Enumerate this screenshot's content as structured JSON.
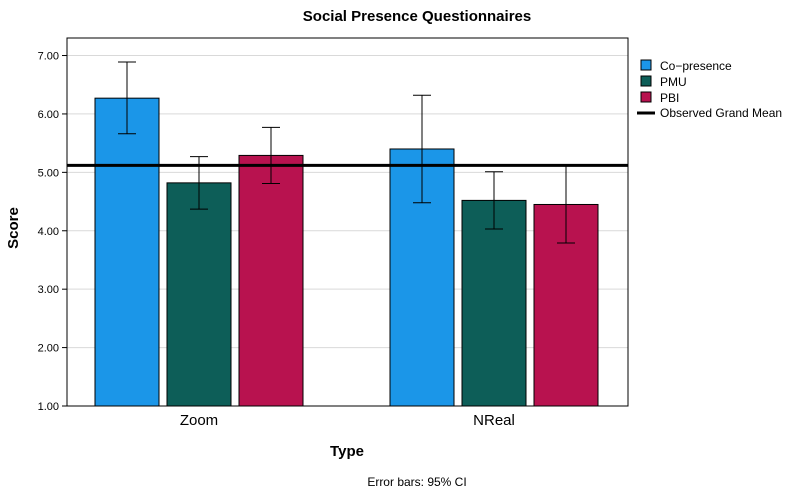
{
  "chart_data": {
    "type": "bar",
    "title": "Social Presence Questionnaires",
    "xlabel": "Type",
    "ylabel": "Score",
    "categories": [
      "Zoom",
      "NReal"
    ],
    "ylim": [
      1.0,
      7.3
    ],
    "yticks": [
      "1.00",
      "2.00",
      "3.00",
      "4.00",
      "5.00",
      "6.00",
      "7.00"
    ],
    "series": [
      {
        "name": "Co−presence",
        "color": "#1b96e8",
        "values": [
          6.27,
          5.4
        ],
        "ci_low": [
          5.66,
          4.48
        ],
        "ci_high": [
          6.89,
          6.32
        ]
      },
      {
        "name": "PMU",
        "color": "#0d5e58",
        "values": [
          4.82,
          4.52
        ],
        "ci_low": [
          4.37,
          4.03
        ],
        "ci_high": [
          5.27,
          5.01
        ]
      },
      {
        "name": "PBI",
        "color": "#b8124f",
        "values": [
          5.29,
          4.45
        ],
        "ci_low": [
          4.81,
          3.79
        ],
        "ci_high": [
          5.77,
          5.11
        ]
      }
    ],
    "reference_line": {
      "name": "Observed Grand Mean",
      "value": 5.12
    },
    "footnote": "Error bars: 95% CI"
  }
}
